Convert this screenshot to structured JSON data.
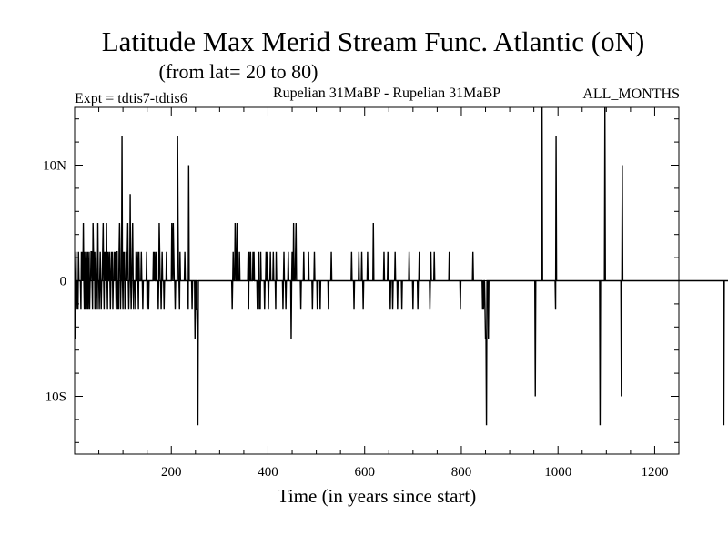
{
  "chart_data": {
    "type": "line",
    "title": "Latitude Max Merid Stream Func. Atlantic (oN)",
    "subtitle": "(from lat= 20 to 80)",
    "expt_label": "Expt = tdtis7-tdtis6",
    "period_label": "Rupelian  31MaBP - Rupelian  31MaBP",
    "months_label": "ALL_MONTHS",
    "xlabel": "Time (in years since start)",
    "ylabel": "",
    "xlim": [
      0,
      1250
    ],
    "ylim": [
      -15,
      15
    ],
    "x_ticks": [
      {
        "value": 200,
        "label": "200"
      },
      {
        "value": 400,
        "label": "400"
      },
      {
        "value": 600,
        "label": "600"
      },
      {
        "value": 800,
        "label": "800"
      },
      {
        "value": 1000,
        "label": "1000"
      },
      {
        "value": 1200,
        "label": "1200"
      }
    ],
    "y_ticks": [
      {
        "value": 10,
        "label": "10N"
      },
      {
        "value": 0,
        "label": "0"
      },
      {
        "value": -10,
        "label": "10S"
      }
    ],
    "grid": false,
    "series": [
      {
        "color": "#000000",
        "step": 1,
        "x_start": 1,
        "values": [
          -5,
          0,
          2.5,
          -2.5,
          0,
          0,
          -2.5,
          2.5,
          0,
          0,
          0,
          0,
          -2.5,
          2.5,
          0,
          2.5,
          0,
          5,
          0,
          -2.5,
          2.5,
          -2.5,
          0,
          2.5,
          0,
          -2.5,
          2.5,
          -2.5,
          0,
          2.5,
          -2.5,
          0,
          0,
          2.5,
          2.5,
          0,
          -2.5,
          5,
          2.5,
          0,
          2.5,
          -2.5,
          0,
          2.5,
          0,
          0,
          -2.5,
          5,
          0,
          0,
          -2.5,
          0,
          2.5,
          0,
          -2.5,
          0,
          0,
          2.5,
          5,
          0,
          -2.5,
          2.5,
          0,
          2.5,
          0,
          5,
          0,
          -2.5,
          2.5,
          0,
          0,
          2.5,
          0,
          -2.5,
          0,
          2.5,
          0,
          2.5,
          -2.5,
          0,
          0,
          2.5,
          0,
          2.5,
          0,
          -2.5,
          2.5,
          2.5,
          -2.5,
          0,
          -2.5,
          2.5,
          5,
          2.5,
          -2.5,
          0,
          0,
          12.5,
          0,
          -2.5,
          2.5,
          0,
          2.5,
          -2.5,
          0,
          0,
          2.5,
          0,
          2.5,
          5,
          0,
          -2.5,
          0,
          0,
          7.5,
          0,
          -2.5,
          0,
          2.5,
          5,
          0,
          -2.5,
          0,
          0,
          0,
          -2.5,
          2.5,
          0,
          0,
          2.5,
          0,
          -2.5,
          2.5,
          0,
          0,
          0,
          0,
          2.5,
          0,
          0,
          -2.5,
          0,
          0,
          0,
          0,
          0,
          0,
          0,
          2.5,
          -2.5,
          0,
          0,
          -2.5,
          0,
          0,
          0,
          0,
          0,
          0,
          0,
          0,
          0,
          2.5,
          0,
          2.5,
          0,
          0,
          2.5,
          0,
          0,
          0,
          0,
          -2.5,
          0,
          5,
          2.5,
          0,
          0,
          -2.5,
          0,
          2.5,
          0,
          0,
          0,
          -2.5,
          0,
          0,
          0,
          0,
          2.5,
          0,
          0,
          0,
          0,
          0,
          0,
          0,
          0,
          0,
          0,
          5,
          2.5,
          0,
          5,
          2.5,
          0,
          0,
          -2.5,
          0,
          0,
          0,
          0,
          12.5,
          5,
          0,
          0,
          -2.5,
          2.5,
          0,
          0,
          0,
          0,
          0,
          0,
          0,
          0,
          0,
          2.5,
          0,
          0,
          0,
          0,
          0,
          0,
          -2.5,
          10,
          0,
          0,
          0,
          0,
          0,
          0,
          -2.5,
          0,
          0,
          0,
          0,
          0,
          -5,
          0,
          0,
          -2.5,
          -2.5,
          -5,
          -12.5,
          0,
          0,
          0,
          0,
          0,
          0,
          0,
          0,
          0,
          0,
          0,
          0,
          0,
          0,
          0,
          0,
          0,
          0,
          0,
          0,
          0,
          0,
          0,
          0,
          0,
          0,
          0,
          0,
          0,
          0,
          0,
          0,
          0,
          0,
          0,
          0,
          0,
          0,
          0,
          0,
          0,
          0,
          0,
          0,
          0,
          0,
          0,
          0,
          0,
          0,
          0,
          0,
          0,
          0,
          0,
          0,
          0,
          0,
          0,
          0,
          0,
          0,
          0,
          0,
          0,
          0,
          0,
          0,
          0,
          0,
          -2.5,
          0,
          2.5,
          0,
          0,
          0,
          5,
          2.5,
          0,
          0,
          5,
          0,
          0,
          0,
          0,
          2.5,
          0,
          0,
          0,
          0,
          0,
          0,
          0,
          0,
          0,
          0,
          0,
          0,
          0,
          0,
          0,
          0,
          0,
          2.5,
          -2.5,
          2.5,
          0,
          0,
          2.5,
          0,
          0,
          0,
          0,
          2.5,
          0,
          2.5,
          0,
          0,
          0,
          0,
          0,
          0,
          -2.5,
          0,
          0,
          2.5,
          -2.5,
          0,
          -2.5,
          2.5,
          0,
          0,
          0,
          0,
          0,
          0,
          0,
          -2.5,
          0,
          0,
          2.5,
          0,
          0,
          2.5,
          0,
          -2.5,
          0,
          0,
          0,
          2.5,
          0,
          0,
          0,
          0,
          0,
          2.5,
          0,
          0,
          0,
          0,
          -2.5,
          2.5,
          0,
          0,
          0,
          0,
          0,
          0,
          0,
          0,
          0,
          0,
          0,
          0,
          0,
          -2.5,
          0,
          2.5,
          0,
          0,
          0,
          -2.5,
          0,
          0,
          0,
          0,
          2.5,
          0,
          0,
          0,
          0,
          0,
          -5,
          0,
          2.5,
          0,
          0,
          5,
          0,
          0,
          0,
          2.5,
          5,
          0,
          0,
          0,
          0,
          0,
          0,
          0,
          0,
          0,
          -2.5,
          0,
          0,
          0,
          0,
          0,
          2.5,
          0,
          0,
          0,
          0,
          0,
          0,
          0,
          0,
          0,
          2.5,
          0,
          0,
          0,
          0,
          0,
          0,
          0,
          -2.5,
          0,
          0,
          0,
          2.5,
          0,
          0,
          0,
          0,
          0,
          -2.5,
          0,
          0,
          0,
          0,
          0,
          -2.5,
          0,
          0,
          0,
          0,
          0,
          0,
          0,
          0,
          0,
          0,
          0,
          0,
          0,
          0,
          0,
          0,
          -2.5,
          0,
          0,
          0,
          0,
          0,
          2.5,
          0,
          0,
          0,
          0,
          0,
          0,
          0,
          0,
          0,
          0,
          0,
          0,
          0,
          0,
          0,
          0,
          0,
          0,
          0,
          0,
          0,
          0,
          0,
          0,
          0,
          0,
          0,
          0,
          0,
          0,
          0,
          0,
          0,
          0,
          0,
          0,
          0,
          0,
          0,
          0,
          0,
          2.5,
          0,
          0,
          0,
          0,
          -2.5,
          0,
          0,
          0,
          0,
          0,
          0,
          0,
          0,
          0,
          2.5,
          0,
          0,
          0,
          0,
          0,
          2.5,
          0,
          0,
          -2.5,
          0,
          0,
          0,
          0,
          0,
          0,
          0,
          0,
          2.5,
          0,
          0,
          0,
          0,
          0,
          0,
          0,
          0,
          0,
          0,
          0,
          5,
          0,
          0,
          0,
          0,
          0,
          0,
          0,
          0,
          0,
          0,
          0,
          0,
          0,
          0,
          0,
          0,
          0,
          0,
          0,
          0,
          0,
          2.5,
          0,
          0,
          0,
          0,
          0,
          0,
          0,
          2.5,
          0,
          0,
          0,
          0,
          -2.5,
          0,
          0,
          0,
          0,
          -2.5,
          0,
          0,
          0,
          0,
          2.5,
          0,
          0,
          0,
          0,
          -2.5,
          0,
          0,
          0,
          0,
          0,
          0,
          0,
          0,
          -2.5,
          0,
          0,
          0,
          0,
          0,
          0,
          0,
          0,
          0,
          0,
          0,
          0,
          0,
          0,
          2.5,
          0,
          0,
          0,
          0,
          0,
          0,
          0,
          -2.5,
          0,
          0,
          0,
          0,
          0,
          0,
          0,
          0,
          0,
          -2.5,
          0,
          0,
          2.5,
          0,
          0,
          0,
          0,
          0,
          0,
          0,
          0,
          0,
          0,
          0,
          0,
          0,
          0,
          0,
          0,
          0,
          0,
          0,
          0,
          0,
          -2.5,
          0,
          2.5,
          0,
          0,
          0,
          0,
          0,
          0,
          2.5,
          0,
          0,
          0,
          0,
          0,
          0,
          0,
          0,
          0,
          0,
          0,
          0,
          0,
          0,
          0,
          0,
          0,
          0,
          0,
          0,
          0,
          0,
          0,
          0,
          0,
          0,
          0,
          0,
          0,
          0,
          2.5,
          0,
          0,
          0,
          0,
          0,
          0,
          0,
          0,
          0,
          0,
          0,
          0,
          0,
          0,
          0,
          0,
          0,
          0,
          0,
          0,
          0,
          0,
          -2.5,
          0,
          0,
          0,
          0,
          0,
          0,
          0,
          0,
          0,
          0,
          0,
          0,
          0,
          0,
          0,
          0,
          0,
          0,
          0,
          0,
          0,
          0,
          0,
          0,
          0,
          2.5,
          0,
          0,
          0,
          0,
          0,
          0,
          0,
          0,
          0,
          0,
          0,
          0,
          0,
          0,
          0,
          0,
          0,
          0,
          0,
          -2.5,
          0,
          -2.5,
          0,
          0,
          -2.5,
          -5,
          -5,
          -12.5,
          0,
          0,
          0,
          -5,
          0,
          0,
          0,
          0,
          0,
          0,
          0,
          0,
          0,
          0,
          0,
          0,
          0,
          0,
          0,
          0,
          0,
          0,
          0,
          0,
          0,
          0,
          0,
          0,
          0,
          0,
          0,
          0,
          0,
          0,
          0,
          0,
          0,
          0,
          0,
          0,
          0,
          0,
          0,
          0,
          0,
          0,
          0,
          0,
          0,
          0,
          0,
          0,
          0,
          0,
          0,
          0,
          0,
          0,
          0,
          0,
          0,
          0,
          0,
          0,
          0,
          0,
          0,
          0,
          0,
          0,
          0,
          0,
          0,
          0,
          0,
          0,
          0,
          0,
          0,
          0,
          0,
          0,
          0,
          0,
          0,
          0,
          0,
          0,
          0,
          0,
          0,
          0,
          0,
          0,
          0,
          0,
          0,
          0,
          0,
          0,
          -10,
          0,
          0,
          0,
          0,
          0,
          0,
          0,
          0,
          0,
          0,
          0,
          0,
          0,
          15,
          0,
          0,
          0,
          0,
          0,
          0,
          0,
          0,
          0,
          0,
          0,
          0,
          0,
          0,
          0,
          0,
          0,
          0,
          0,
          0,
          0,
          0,
          0,
          0,
          0,
          0,
          0,
          -2.5,
          12.5,
          0,
          0,
          0,
          0,
          0,
          0,
          0,
          0,
          0,
          0,
          0,
          0,
          0,
          0,
          0,
          0,
          0,
          0,
          0,
          0,
          0,
          0,
          0,
          0,
          0,
          0,
          0,
          0,
          0,
          0,
          0,
          0,
          0,
          0,
          0,
          0,
          0,
          0,
          0,
          0,
          0,
          0,
          0,
          0,
          0,
          0,
          0,
          0,
          0,
          0,
          0,
          0,
          0,
          0,
          0,
          0,
          0,
          0,
          0,
          0,
          0,
          0,
          0,
          0,
          0,
          0,
          0,
          0,
          0,
          0,
          0,
          0,
          0,
          0,
          0,
          0,
          0,
          0,
          0,
          0,
          0,
          0,
          0,
          0,
          0,
          0,
          0,
          0,
          0,
          0,
          -12.5,
          0,
          0,
          0,
          0,
          0,
          0,
          0,
          0,
          0,
          15,
          0,
          0,
          0,
          0,
          0,
          0,
          0,
          0,
          0,
          0,
          0,
          0,
          0,
          0,
          0,
          0,
          0,
          0,
          0,
          0,
          0,
          0,
          0,
          0,
          0,
          0,
          0,
          0,
          0,
          0,
          0,
          0,
          0,
          -10,
          0,
          10,
          0,
          0,
          0,
          0,
          0,
          0,
          0,
          0,
          0,
          0,
          0,
          0,
          0,
          0,
          0,
          0,
          0,
          0,
          0,
          0,
          0,
          0,
          0,
          0,
          0,
          0,
          0,
          0,
          0,
          0,
          0,
          0,
          0,
          0,
          0,
          0,
          0,
          0,
          0,
          0,
          0,
          0,
          0,
          0,
          0,
          0,
          0,
          0,
          0,
          0,
          0,
          0,
          0,
          0,
          0,
          0,
          0,
          0,
          0,
          0,
          0,
          0,
          0,
          0,
          0,
          0,
          0,
          0,
          0,
          0,
          0,
          0,
          0,
          0,
          0,
          0,
          0,
          0,
          0,
          0,
          0,
          0,
          0,
          0,
          0,
          0,
          0,
          0,
          0,
          0,
          0,
          0,
          0,
          0,
          0,
          0,
          0,
          0,
          0,
          0,
          0,
          0,
          0,
          0,
          0,
          0,
          0,
          0,
          0,
          0,
          0,
          0,
          0,
          0,
          0,
          0,
          0,
          0,
          0,
          0,
          0,
          0,
          0,
          0,
          0,
          0,
          0,
          0,
          0,
          0,
          0,
          0,
          0,
          0,
          0,
          0,
          0,
          0,
          0,
          0,
          0,
          0,
          0,
          0,
          0,
          0,
          0,
          0,
          0,
          0,
          0,
          0,
          0,
          0,
          0,
          0,
          0,
          0,
          0,
          0,
          0,
          0,
          0,
          0,
          0,
          0,
          0,
          0,
          0,
          0,
          0,
          0,
          0,
          0,
          0,
          0,
          0,
          0,
          0,
          0,
          0,
          0,
          0,
          0,
          0,
          0,
          0,
          0,
          0,
          0,
          0,
          0,
          0,
          0,
          0,
          0,
          0,
          0,
          0,
          0,
          0,
          0,
          0,
          0,
          0,
          0,
          0,
          0,
          0,
          -12.5,
          0,
          0,
          0,
          0,
          0,
          0,
          0,
          0,
          0,
          0,
          0,
          0,
          0,
          0,
          0,
          0,
          0,
          0,
          0,
          0,
          0,
          0,
          0,
          0,
          0,
          0,
          0,
          0,
          0,
          0,
          0,
          0,
          0,
          0,
          0,
          0,
          0,
          0,
          0,
          0,
          0,
          0,
          0,
          0,
          0,
          0,
          0,
          0,
          0,
          0,
          0,
          0,
          0,
          0,
          0,
          0,
          0,
          0,
          0,
          0
        ]
      }
    ]
  }
}
